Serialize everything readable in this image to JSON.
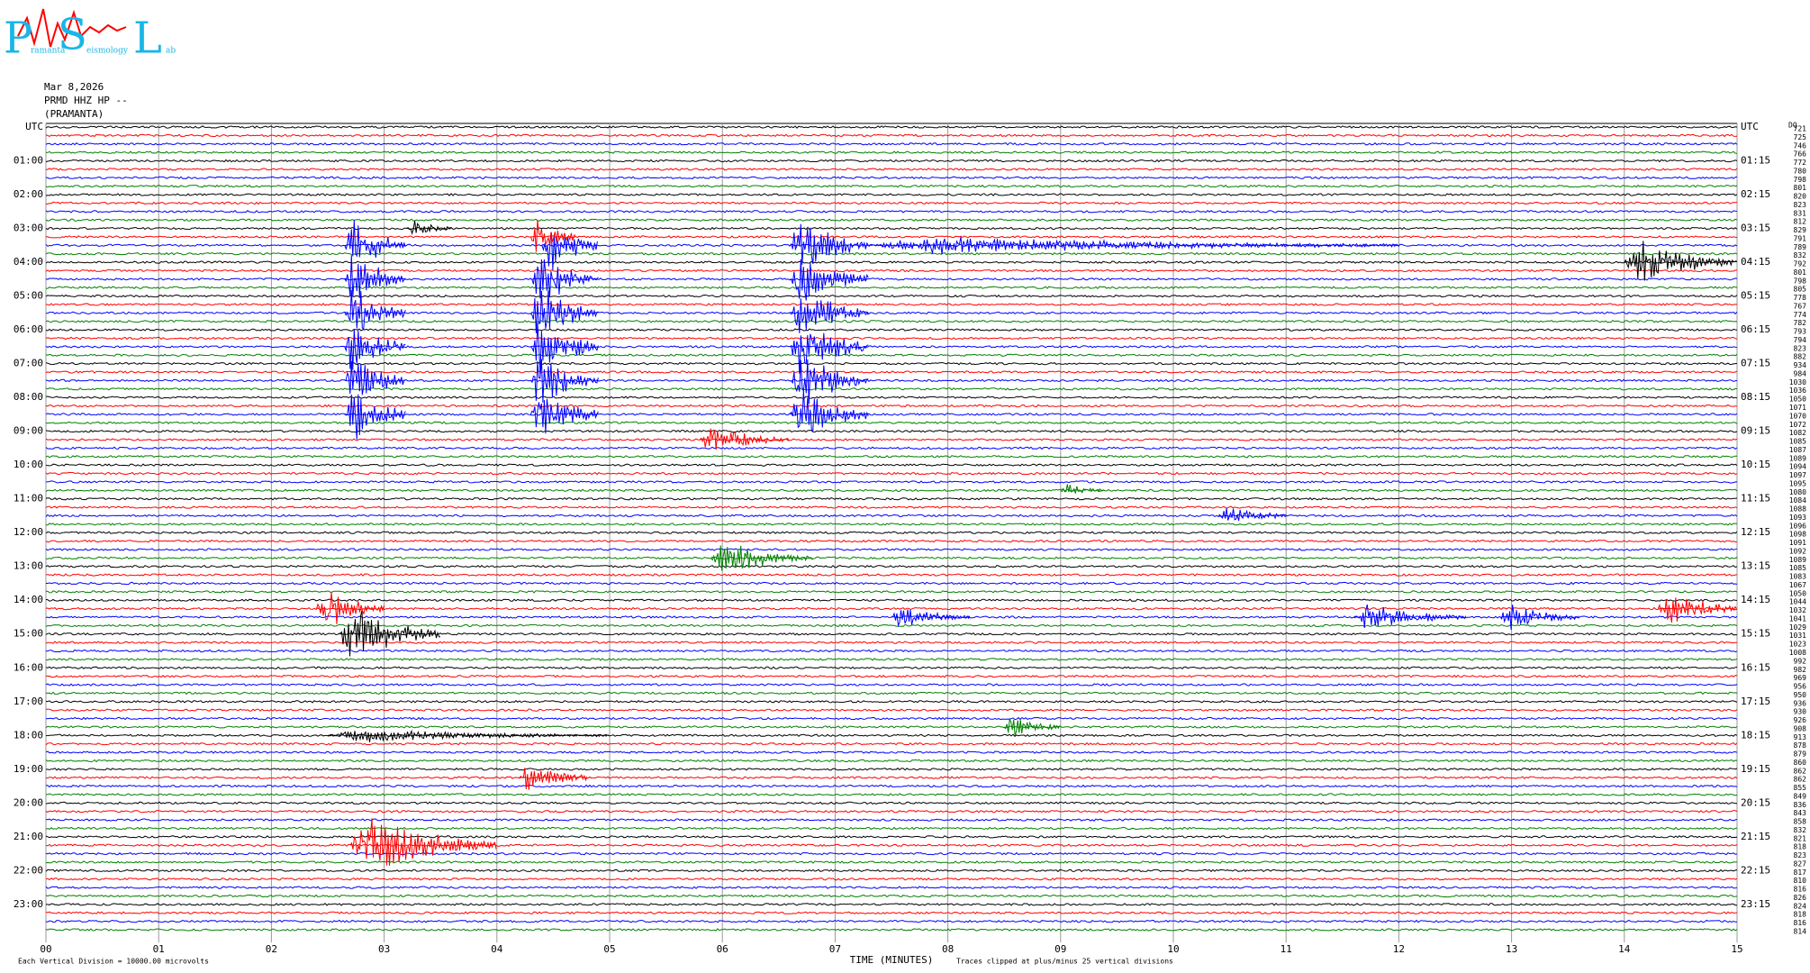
{
  "chart_data": {
    "type": "helicorder",
    "logo": {
      "letters": [
        "P",
        "S",
        "L"
      ],
      "small": [
        "ramanta",
        "eismology",
        "ab"
      ]
    },
    "title_lines": [
      "Mar 8,2026",
      "PRMD HHZ HP --",
      "(PRAMANTA)"
    ],
    "xlabel": "TIME (MINUTES)",
    "note_left": "Each Vertical Division = 10000.00 microvolts",
    "note_right": "Traces clipped at plus/minus 25 vertical divisions",
    "clip_divisions": 25,
    "xlim": [
      0,
      15
    ],
    "xticks": [
      {
        "value": 0,
        "label": "00"
      },
      {
        "value": 1,
        "label": "01"
      },
      {
        "value": 2,
        "label": "02"
      },
      {
        "value": 3,
        "label": "03"
      },
      {
        "value": 4,
        "label": "04"
      },
      {
        "value": 5,
        "label": "05"
      },
      {
        "value": 6,
        "label": "06"
      },
      {
        "value": 7,
        "label": "07"
      },
      {
        "value": 8,
        "label": "08"
      },
      {
        "value": 9,
        "label": "09"
      },
      10,
      11,
      12,
      13,
      14,
      15
    ],
    "trace_colors": [
      "#000000",
      "#ff0000",
      "#0000ff",
      "#008000"
    ],
    "left_labels": [
      "UTC",
      "01:00",
      "02:00",
      "03:00",
      "04:00",
      "05:00",
      "06:00",
      "07:00",
      "08:00",
      "09:00",
      "10:00",
      "11:00",
      "12:00",
      "13:00",
      "14:00",
      "15:00",
      "16:00",
      "17:00",
      "18:00",
      "19:00",
      "20:00",
      "21:00",
      "22:00",
      "23:00"
    ],
    "right_labels": [
      "UTC",
      "01:15",
      "02:15",
      "03:15",
      "04:15",
      "05:15",
      "06:15",
      "07:15",
      "08:15",
      "09:15",
      "10:15",
      "11:15",
      "12:15",
      "13:15",
      "14:15",
      "15:15",
      "16:15",
      "17:15",
      "18:15",
      "19:15",
      "20:15",
      "21:15",
      "22:15",
      "23:15"
    ],
    "value_header": "DQ",
    "row_values": [
      721,
      725,
      746,
      766,
      772,
      780,
      798,
      801,
      820,
      823,
      831,
      812,
      829,
      791,
      789,
      832,
      792,
      801,
      798,
      805,
      778,
      767,
      774,
      782,
      793,
      794,
      823,
      882,
      934,
      984,
      1030,
      1036,
      1050,
      1071,
      1070,
      1072,
      1082,
      1085,
      1087,
      1089,
      1094,
      1097,
      1095,
      1080,
      1084,
      1088,
      1093,
      1096,
      1098,
      1091,
      1092,
      1089,
      1085,
      1083,
      1067,
      1050,
      1044,
      1032,
      1041,
      1029,
      1031,
      1023,
      1008,
      992,
      982,
      969,
      956,
      950,
      936,
      930,
      926,
      908,
      913,
      878,
      879,
      860,
      862,
      862,
      855,
      849,
      836,
      843,
      858,
      832,
      821,
      818,
      823,
      827,
      817,
      810,
      816,
      826,
      824,
      818,
      816,
      814
    ],
    "events": [
      {
        "row": 14,
        "start": 2.65,
        "end": 3.2,
        "amp": 25
      },
      {
        "row": 18,
        "start": 2.65,
        "end": 3.2,
        "amp": 25
      },
      {
        "row": 22,
        "start": 2.65,
        "end": 3.2,
        "amp": 25
      },
      {
        "row": 26,
        "start": 2.65,
        "end": 3.2,
        "amp": 25
      },
      {
        "row": 30,
        "start": 2.65,
        "end": 3.2,
        "amp": 25
      },
      {
        "row": 34,
        "start": 2.65,
        "end": 3.2,
        "amp": 25
      },
      {
        "row": 14,
        "start": 4.4,
        "end": 4.9,
        "amp": 25
      },
      {
        "row": 18,
        "start": 4.3,
        "end": 4.9,
        "amp": 25
      },
      {
        "row": 22,
        "start": 4.3,
        "end": 4.9,
        "amp": 25
      },
      {
        "row": 26,
        "start": 4.3,
        "end": 4.9,
        "amp": 25
      },
      {
        "row": 30,
        "start": 4.3,
        "end": 4.9,
        "amp": 25
      },
      {
        "row": 34,
        "start": 4.3,
        "end": 4.9,
        "amp": 25
      },
      {
        "row": 14,
        "start": 6.6,
        "end": 7.3,
        "amp": 25
      },
      {
        "row": 18,
        "start": 6.6,
        "end": 7.3,
        "amp": 25
      },
      {
        "row": 22,
        "start": 6.6,
        "end": 7.3,
        "amp": 25
      },
      {
        "row": 26,
        "start": 6.6,
        "end": 7.3,
        "amp": 25
      },
      {
        "row": 30,
        "start": 6.6,
        "end": 7.3,
        "amp": 25
      },
      {
        "row": 34,
        "start": 6.6,
        "end": 7.3,
        "amp": 25
      },
      {
        "row": 14,
        "start": 7.3,
        "end": 12,
        "amp": 8
      },
      {
        "row": 13,
        "start": 4.3,
        "end": 4.7,
        "amp": 18
      },
      {
        "row": 12,
        "start": 3.2,
        "end": 3.6,
        "amp": 8
      },
      {
        "row": 16,
        "start": 14.0,
        "end": 15,
        "amp": 20
      },
      {
        "row": 60,
        "start": 2.6,
        "end": 3.5,
        "amp": 25
      },
      {
        "row": 57,
        "start": 2.4,
        "end": 3.0,
        "amp": 20
      },
      {
        "row": 85,
        "start": 2.7,
        "end": 4.0,
        "amp": 25
      },
      {
        "row": 77,
        "start": 4.2,
        "end": 4.8,
        "amp": 15
      },
      {
        "row": 51,
        "start": 5.9,
        "end": 6.8,
        "amp": 15
      },
      {
        "row": 37,
        "start": 5.8,
        "end": 6.6,
        "amp": 12
      },
      {
        "row": 58,
        "start": 7.5,
        "end": 8.2,
        "amp": 10
      },
      {
        "row": 46,
        "start": 10.4,
        "end": 11.0,
        "amp": 10
      },
      {
        "row": 58,
        "start": 11.6,
        "end": 12.6,
        "amp": 12
      },
      {
        "row": 58,
        "start": 12.9,
        "end": 13.6,
        "amp": 12
      },
      {
        "row": 57,
        "start": 14.3,
        "end": 15,
        "amp": 18
      },
      {
        "row": 71,
        "start": 8.5,
        "end": 9.0,
        "amp": 10
      },
      {
        "row": 43,
        "start": 9.0,
        "end": 9.4,
        "amp": 6
      },
      {
        "row": 72,
        "start": 2.5,
        "end": 5.0,
        "amp": 6
      }
    ]
  }
}
